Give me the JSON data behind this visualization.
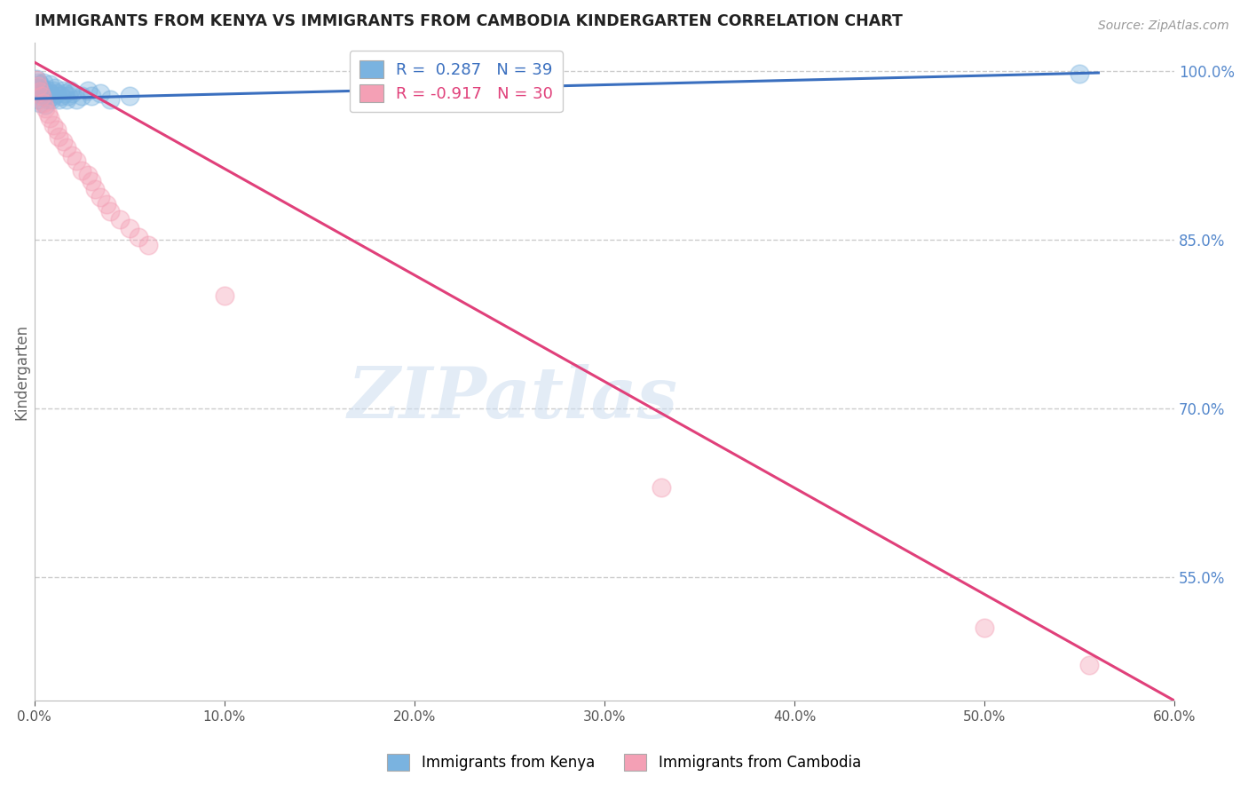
{
  "title": "IMMIGRANTS FROM KENYA VS IMMIGRANTS FROM CAMBODIA KINDERGARTEN CORRELATION CHART",
  "source": "Source: ZipAtlas.com",
  "ylabel": "Kindergarten",
  "watermark": "ZIPatlas",
  "kenya": {
    "label": "Immigrants from Kenya",
    "R": 0.287,
    "N": 39,
    "color": "#7ab3e0",
    "line_color": "#3a6fbf",
    "x": [
      0.001,
      0.001,
      0.002,
      0.002,
      0.002,
      0.003,
      0.003,
      0.003,
      0.004,
      0.004,
      0.005,
      0.005,
      0.006,
      0.006,
      0.007,
      0.007,
      0.008,
      0.008,
      0.009,
      0.01,
      0.01,
      0.011,
      0.012,
      0.013,
      0.014,
      0.015,
      0.016,
      0.017,
      0.018,
      0.019,
      0.02,
      0.022,
      0.025,
      0.028,
      0.03,
      0.035,
      0.04,
      0.05,
      0.55
    ],
    "y": [
      0.993,
      0.985,
      0.99,
      0.982,
      0.975,
      0.988,
      0.98,
      0.972,
      0.985,
      0.978,
      0.99,
      0.983,
      0.978,
      0.97,
      0.983,
      0.975,
      0.988,
      0.98,
      0.975,
      0.983,
      0.978,
      0.985,
      0.98,
      0.975,
      0.978,
      0.983,
      0.98,
      0.975,
      0.978,
      0.983,
      0.98,
      0.975,
      0.978,
      0.983,
      0.978,
      0.98,
      0.975,
      0.978,
      0.998
    ]
  },
  "cambodia": {
    "label": "Immigrants from Cambodia",
    "R": -0.917,
    "N": 30,
    "color": "#f4a0b5",
    "line_color": "#e0407a",
    "x": [
      0.001,
      0.002,
      0.003,
      0.004,
      0.005,
      0.006,
      0.007,
      0.008,
      0.01,
      0.012,
      0.013,
      0.015,
      0.017,
      0.02,
      0.022,
      0.025,
      0.028,
      0.03,
      0.032,
      0.035,
      0.038,
      0.04,
      0.045,
      0.05,
      0.055,
      0.06,
      0.1,
      0.33,
      0.5,
      0.555
    ],
    "y": [
      0.992,
      0.987,
      0.982,
      0.978,
      0.972,
      0.967,
      0.962,
      0.958,
      0.952,
      0.948,
      0.942,
      0.938,
      0.932,
      0.925,
      0.92,
      0.912,
      0.908,
      0.902,
      0.895,
      0.888,
      0.882,
      0.875,
      0.868,
      0.86,
      0.852,
      0.845,
      0.8,
      0.63,
      0.505,
      0.472
    ]
  },
  "xlim": [
    0.0,
    0.6
  ],
  "ylim": [
    0.44,
    1.025
  ],
  "right_yticks": [
    1.0,
    0.85,
    0.7,
    0.55
  ],
  "right_yticklabels": [
    "100.0%",
    "85.0%",
    "70.0%",
    "55.0%"
  ],
  "grid_color": "#cccccc",
  "title_color": "#222222",
  "right_tick_color": "#5588cc",
  "background_color": "#ffffff"
}
